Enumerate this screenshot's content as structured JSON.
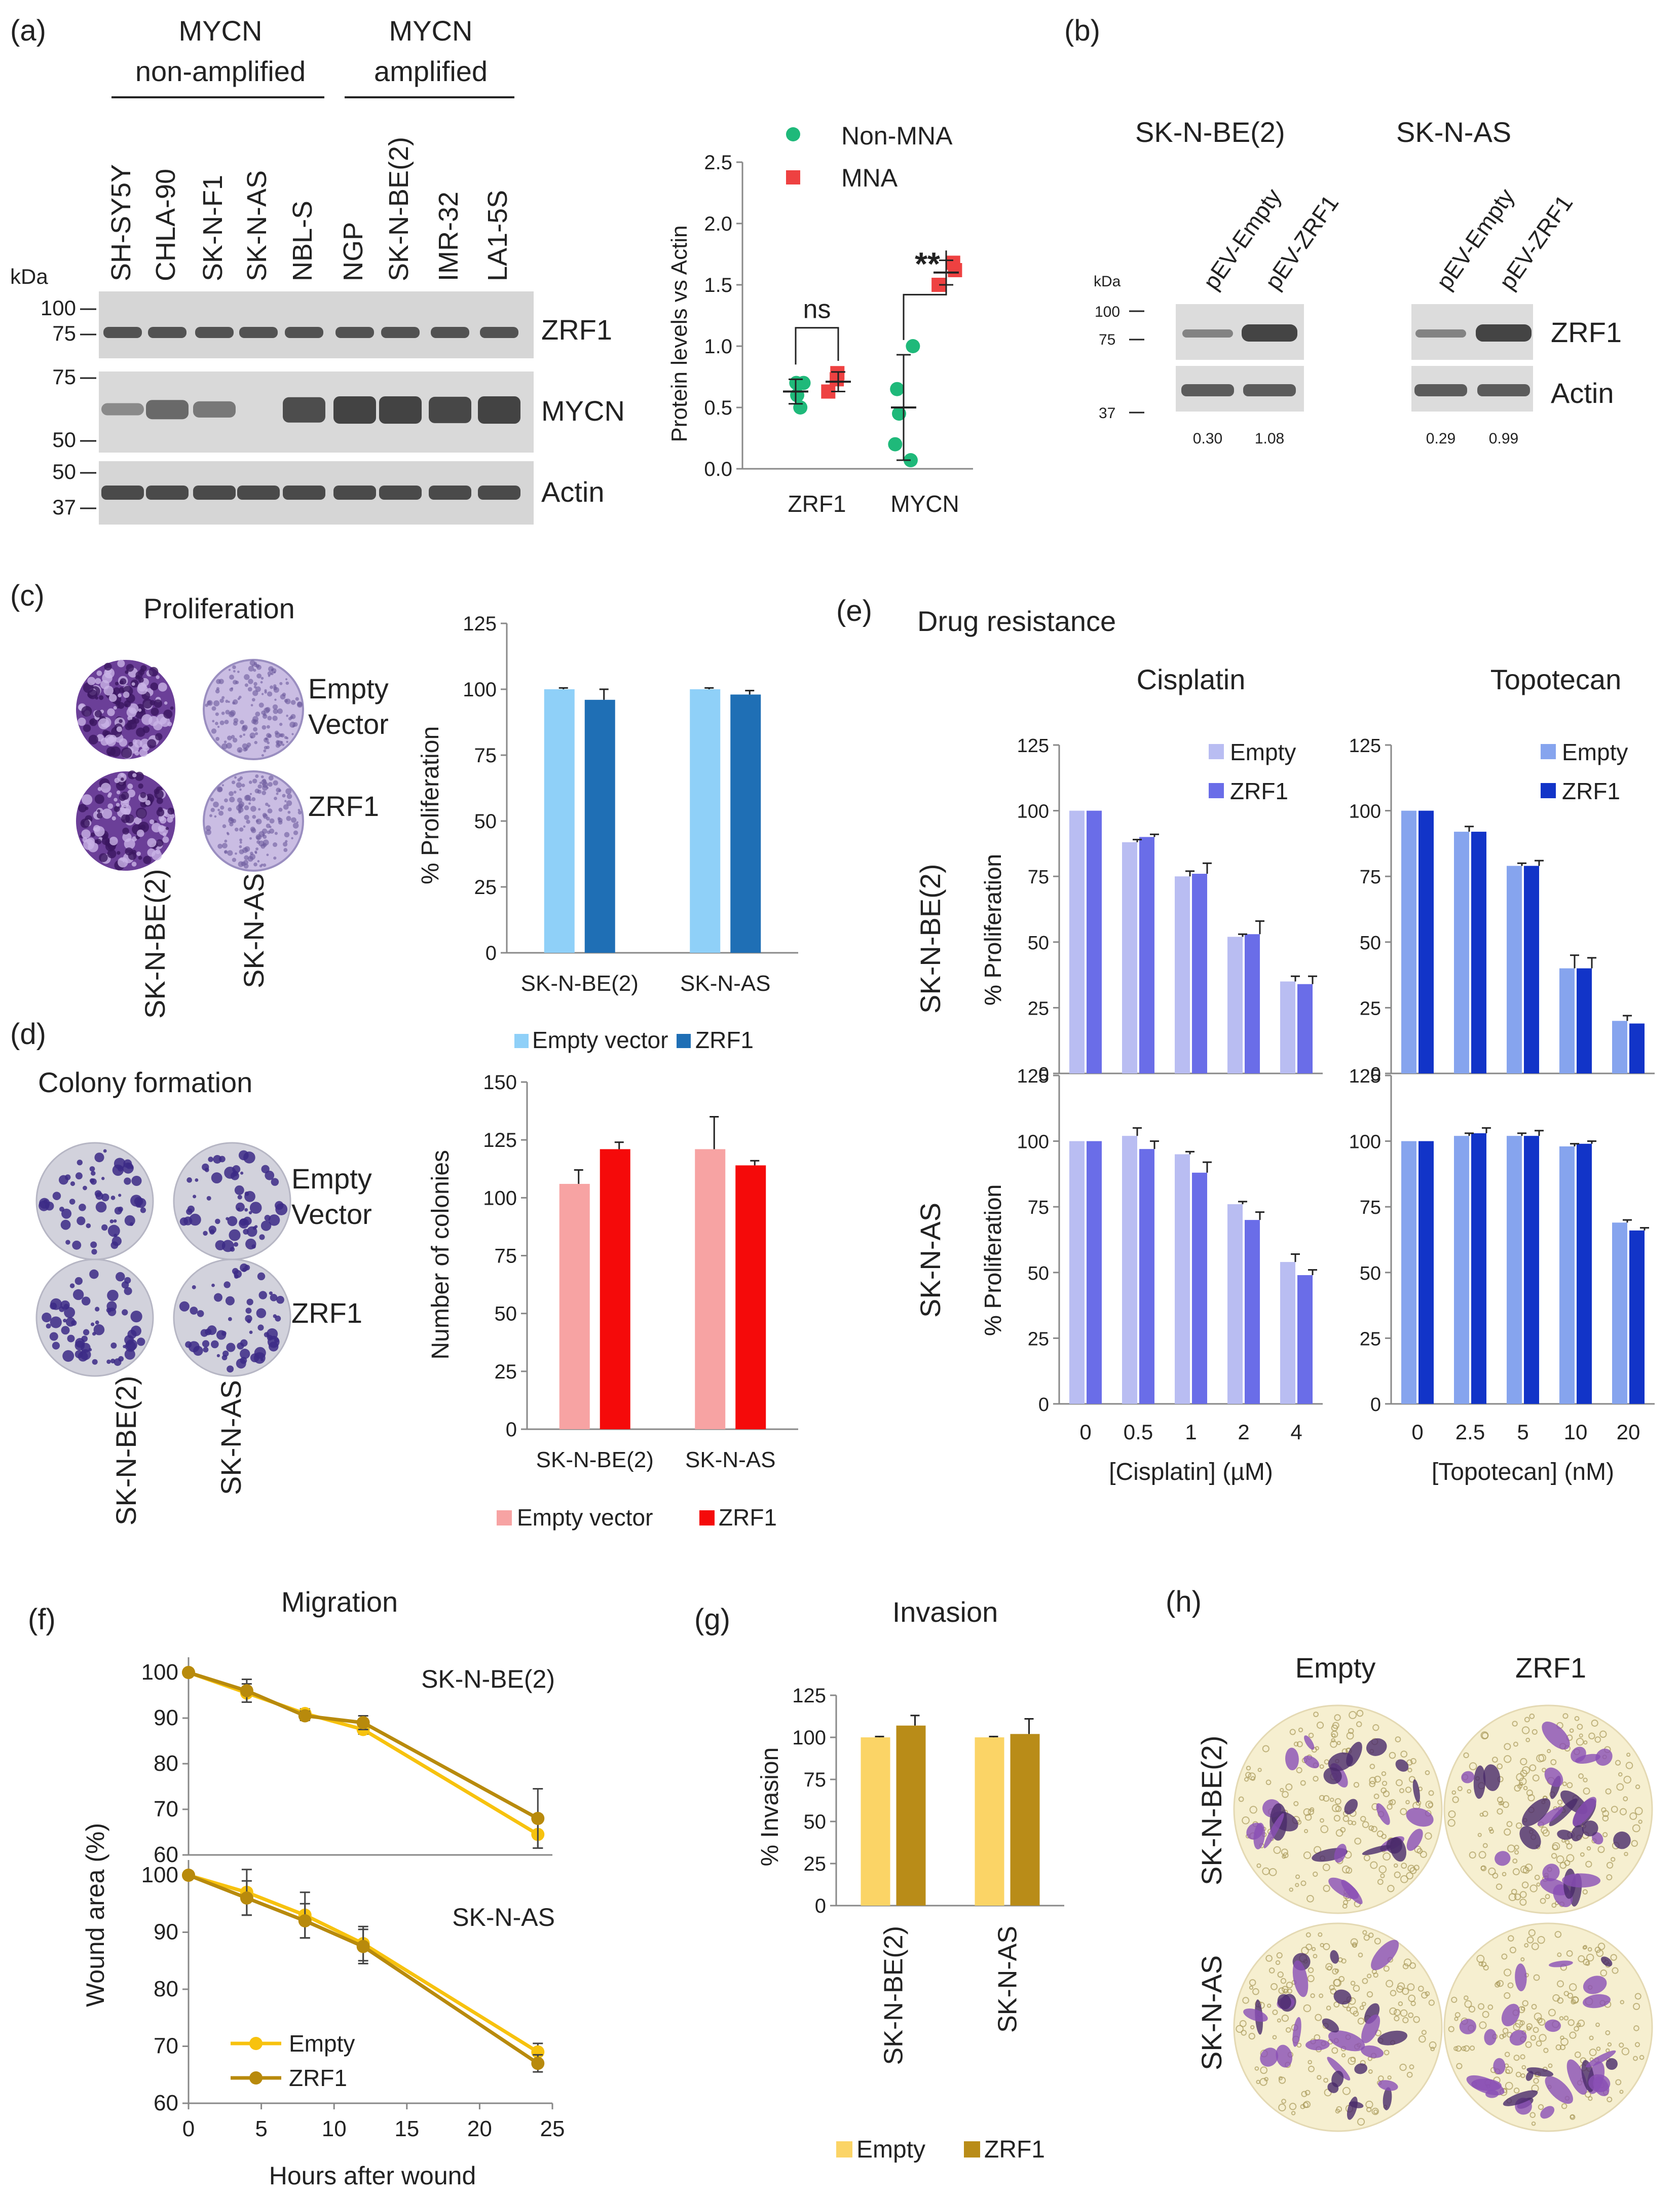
{
  "colors": {
    "blot_bg": "#d8d8d8",
    "band": "#3b3b3b",
    "green": "#1fb97a",
    "red": "#ee4141",
    "prolif_empty": "#8fd0f8",
    "prolif_zrf1": "#1f6fb5",
    "colony_empty": "#f7a3a3",
    "colony_zrf1": "#f50a0a",
    "cis_empty": "#b9bdf2",
    "cis_zrf1": "#6a6de8",
    "topo_empty": "#86a4ee",
    "topo_zrf1": "#1234c8",
    "mig_empty": "#f7c20e",
    "mig_zrf1": "#b88a0c",
    "inv_empty": "#fbd466",
    "inv_zrf1": "#b98c18",
    "crystal": "#5a2a8a"
  },
  "a": {
    "label": "(a)",
    "group_non": [
      "MYCN",
      "non-amplified"
    ],
    "group_amp": [
      "MYCN",
      "amplified"
    ],
    "lanes": [
      "SH-SY5Y",
      "CHLA-90",
      "SK-N-F1",
      "SK-N-AS",
      "NBL-S",
      "NGP",
      "SK-N-BE(2)",
      "IMR-32",
      "LA1-5S"
    ],
    "kda": "kDa",
    "zrf1_marks": [
      "100",
      "75"
    ],
    "mycn_marks": [
      "75",
      "50"
    ],
    "actin_marks": [
      "50",
      "37"
    ],
    "blots": [
      "ZRF1",
      "MYCN",
      "Actin"
    ],
    "mycn_band": [
      0.25,
      0.6,
      0.45,
      0.0,
      0.9,
      1.0,
      1.0,
      0.95,
      1.0
    ]
  },
  "a_chart": {
    "type": "scatter",
    "ylabel": "Protein levels vs Actin",
    "ylim": [
      0,
      2.5
    ],
    "yticks": [
      "0.0",
      "0.5",
      "1.0",
      "1.5",
      "2.0",
      "2.5"
    ],
    "categories": [
      "ZRF1",
      "MYCN"
    ],
    "legend": [
      "Non-MNA",
      "MNA"
    ],
    "sig_zrf1": "ns",
    "sig_mycn": "**",
    "series": [
      {
        "name": "Non-MNA",
        "groups": [
          {
            "category": "ZRF1",
            "points": [
              0.5,
              0.6,
              0.7,
              0.7
            ],
            "mean": 0.63,
            "sd": 0.1
          },
          {
            "category": "MYCN",
            "points": [
              0.07,
              0.2,
              0.45,
              0.65,
              1.0
            ],
            "mean": 0.5,
            "sd": 0.43
          }
        ]
      },
      {
        "name": "MNA",
        "groups": [
          {
            "category": "ZRF1",
            "points": [
              0.63,
              0.73,
              0.78
            ],
            "mean": 0.71,
            "sd": 0.08
          },
          {
            "category": "MYCN",
            "points": [
              1.5,
              1.62,
              1.68
            ],
            "mean": 1.6,
            "sd": 0.1
          }
        ]
      }
    ]
  },
  "b": {
    "label": "(b)",
    "cell1": "SK-N-BE(2)",
    "cell2": "SK-N-AS",
    "lanes": [
      "pEV-Empty",
      "pEV-ZRF1"
    ],
    "kda": "kDa",
    "marks_top": [
      "100",
      "75"
    ],
    "mark_bottom": "37",
    "blots": [
      "ZRF1",
      "Actin"
    ],
    "quant1": [
      "0.30",
      "1.08"
    ],
    "quant2": [
      "0.29",
      "0.99"
    ]
  },
  "c": {
    "label": "(c)",
    "title": "Proliferation",
    "row_labels": [
      "Empty",
      "Vector",
      "ZRF1"
    ],
    "col_labels": [
      "SK-N-BE(2)",
      "SK-N-AS"
    ]
  },
  "c_chart": {
    "type": "bar",
    "ylabel": "% Proliferation",
    "ylim": [
      0,
      125
    ],
    "yticks": [
      "0",
      "25",
      "50",
      "75",
      "100",
      "125"
    ],
    "categories": [
      "SK-N-BE(2)",
      "SK-N-AS"
    ],
    "series": [
      {
        "name": "Empty vector",
        "values": [
          100,
          100
        ],
        "errors": [
          0.5,
          0.5
        ]
      },
      {
        "name": "ZRF1",
        "values": [
          96,
          98
        ],
        "errors": [
          4,
          1.5
        ]
      }
    ]
  },
  "d": {
    "label": "(d)",
    "title": "Colony formation",
    "row_labels": [
      "Empty",
      "Vector",
      "ZRF1"
    ],
    "col_labels": [
      "SK-N-BE(2)",
      "SK-N-AS"
    ]
  },
  "d_chart": {
    "type": "bar",
    "ylabel": "Number of colonies",
    "ylim": [
      0,
      150
    ],
    "yticks": [
      "0",
      "25",
      "50",
      "75",
      "100",
      "125",
      "150"
    ],
    "categories": [
      "SK-N-BE(2)",
      "SK-N-AS"
    ],
    "series": [
      {
        "name": "Empty vector",
        "values": [
          106,
          121
        ],
        "errors": [
          6,
          14
        ]
      },
      {
        "name": "ZRF1",
        "values": [
          121,
          114
        ],
        "errors": [
          3,
          2
        ]
      }
    ]
  },
  "e": {
    "label": "(e)",
    "title": "Drug resistance",
    "col1": "Cisplatin",
    "col2": "Topotecan",
    "row1": "SK-N-BE(2)",
    "row2": "SK-N-AS"
  },
  "e_chart": {
    "type": "bar",
    "ylabel": "% Proliferation",
    "ylim": [
      0,
      125
    ],
    "yticks": [
      "0",
      "25",
      "50",
      "75",
      "100",
      "125"
    ],
    "cisplatin": {
      "xlabel": "[Cisplatin] (µM)",
      "categories": [
        "0",
        "0.5",
        "1",
        "2",
        "4"
      ],
      "legend": [
        "Empty",
        "ZRF1"
      ],
      "sknbe2": {
        "empty": [
          100,
          88,
          75,
          52,
          35
        ],
        "zrf1": [
          100,
          90,
          76,
          53,
          34
        ],
        "empty_err": [
          0,
          1,
          2,
          1,
          2
        ],
        "zrf1_err": [
          0,
          1,
          4,
          5,
          3
        ]
      },
      "sknas": {
        "empty": [
          100,
          102,
          95,
          76,
          54
        ],
        "zrf1": [
          100,
          97,
          88,
          70,
          49
        ],
        "empty_err": [
          0,
          3,
          1,
          1,
          3
        ],
        "zrf1_err": [
          0,
          3,
          4,
          3,
          2
        ]
      }
    },
    "topotecan": {
      "xlabel": "[Topotecan] (nM)",
      "categories": [
        "0",
        "2.5",
        "5",
        "10",
        "20"
      ],
      "legend": [
        "Empty",
        "ZRF1"
      ],
      "sknbe2": {
        "empty": [
          100,
          92,
          79,
          40,
          20
        ],
        "zrf1": [
          100,
          92,
          79,
          40,
          19
        ],
        "empty_err": [
          0,
          2,
          1,
          5,
          2
        ],
        "zrf1_err": [
          0,
          0,
          2,
          4,
          0
        ]
      },
      "sknas": {
        "empty": [
          100,
          102,
          102,
          98,
          69
        ],
        "zrf1": [
          100,
          103,
          102,
          99,
          66
        ],
        "empty_err": [
          0,
          1,
          1,
          1,
          1
        ],
        "zrf1_err": [
          0,
          2,
          2,
          1,
          1
        ]
      }
    }
  },
  "f": {
    "label": "(f)",
    "title": "Migration",
    "ylabel": "Wound area (%)",
    "xlabel": "Hours after wound",
    "panel1": "SK-N-BE(2)",
    "panel2": "SK-N-AS"
  },
  "f_chart": {
    "type": "line",
    "x": [
      0,
      4,
      8,
      12,
      24
    ],
    "xticks": [
      "0",
      "5",
      "10",
      "15",
      "20",
      "25"
    ],
    "ylim": [
      60,
      100
    ],
    "yticks": [
      "60",
      "70",
      "80",
      "90",
      "100"
    ],
    "sknbe2": {
      "empty": [
        100,
        95.5,
        91,
        87.5,
        64.5
      ],
      "zrf1": [
        100,
        96,
        90.5,
        89,
        68
      ],
      "empty_err": [
        0,
        2,
        1,
        1,
        3
      ],
      "zrf1_err": [
        0,
        2.5,
        1,
        1.5,
        6.5
      ]
    },
    "sknas": {
      "empty": [
        100,
        97,
        93,
        88,
        69
      ],
      "zrf1": [
        100,
        96,
        92,
        87.5,
        67
      ],
      "empty_err": [
        0,
        4,
        4,
        3,
        1.5
      ],
      "zrf1_err": [
        0,
        3,
        3,
        3,
        1.5
      ]
    },
    "legend": [
      "Empty",
      "ZRF1"
    ]
  },
  "g": {
    "label": "(g)",
    "title": "Invasion"
  },
  "g_chart": {
    "type": "bar",
    "ylabel": "% Invasion",
    "ylim": [
      0,
      125
    ],
    "yticks": [
      "0",
      "25",
      "50",
      "75",
      "100",
      "125"
    ],
    "categories": [
      "SK-N-BE(2)",
      "SK-N-AS"
    ],
    "series": [
      {
        "name": "Empty",
        "values": [
          100,
          100
        ],
        "errors": [
          0.5,
          0.5
        ]
      },
      {
        "name": "ZRF1",
        "values": [
          107,
          102
        ],
        "errors": [
          6,
          9
        ]
      }
    ]
  },
  "h": {
    "label": "(h)",
    "col1": "Empty",
    "col2": "ZRF1",
    "row1": "SK-N-BE(2)",
    "row2": "SK-N-AS"
  }
}
